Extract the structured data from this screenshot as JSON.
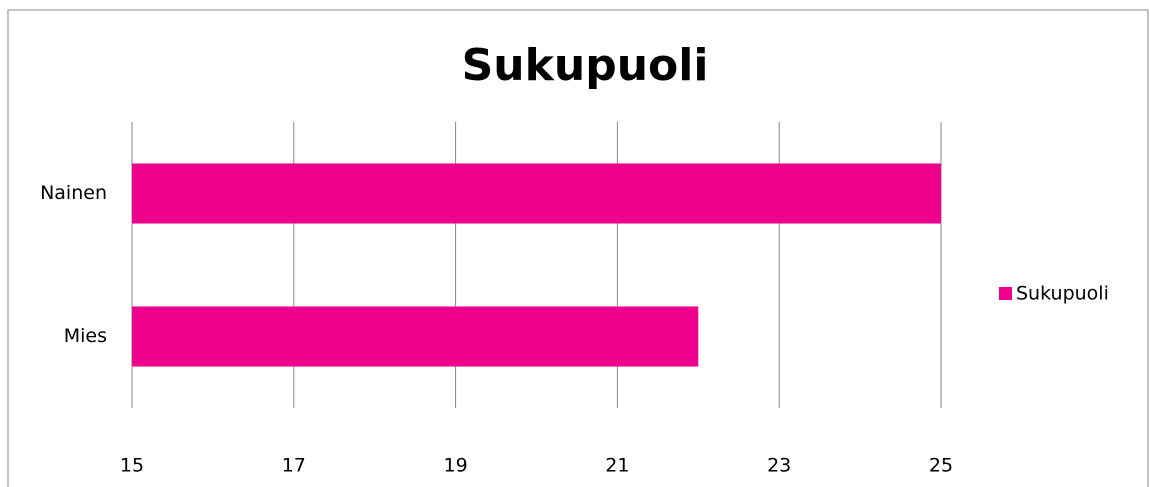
{
  "chart_data": {
    "type": "bar",
    "orientation": "horizontal",
    "title": "Sukupuoli",
    "categories": [
      "Nainen",
      "Mies"
    ],
    "series": [
      {
        "name": "Sukupuoli",
        "color": "#ec008c",
        "values": [
          25,
          22
        ]
      }
    ],
    "xlim": [
      15,
      25
    ],
    "xticks": [
      15,
      17,
      19,
      21,
      23,
      25
    ],
    "grid": true,
    "legend": "right"
  }
}
